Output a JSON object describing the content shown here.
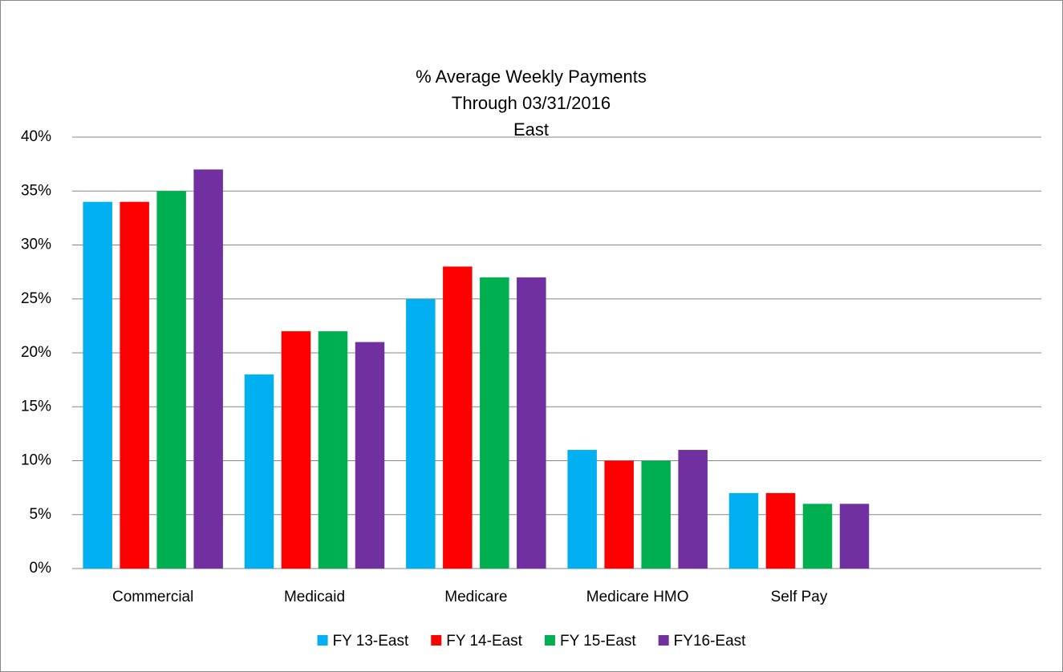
{
  "chart_data": {
    "type": "bar",
    "title": [
      "% Average Weekly Payments",
      "Through 03/31/2016",
      "East"
    ],
    "categories": [
      "Commercial",
      "Medicaid",
      "Medicare",
      "Medicare HMO",
      "Self Pay",
      null
    ],
    "series": [
      {
        "name": "FY 13-East",
        "color": "#00b0f0",
        "values": [
          34,
          18,
          25,
          11,
          7,
          null
        ]
      },
      {
        "name": "FY 14-East",
        "color": "#ff0000",
        "values": [
          34,
          22,
          28,
          10,
          7,
          null
        ]
      },
      {
        "name": "FY 15-East",
        "color": "#00b050",
        "values": [
          35,
          22,
          27,
          10,
          6,
          null
        ]
      },
      {
        "name": "FY16-East",
        "color": "#7030a0",
        "values": [
          37,
          21,
          27,
          11,
          6,
          null
        ]
      }
    ],
    "ylim": [
      0,
      40
    ],
    "yticks": [
      {
        "value": 0,
        "label": "0%"
      },
      {
        "value": 5,
        "label": "5%"
      },
      {
        "value": 10,
        "label": "10%"
      },
      {
        "value": 15,
        "label": "15%"
      },
      {
        "value": 20,
        "label": "20%"
      },
      {
        "value": 25,
        "label": "25%"
      },
      {
        "value": 30,
        "label": "30%"
      },
      {
        "value": 35,
        "label": "35%"
      },
      {
        "value": 40,
        "label": "40%"
      }
    ],
    "grid": true,
    "legend": "bottom"
  }
}
